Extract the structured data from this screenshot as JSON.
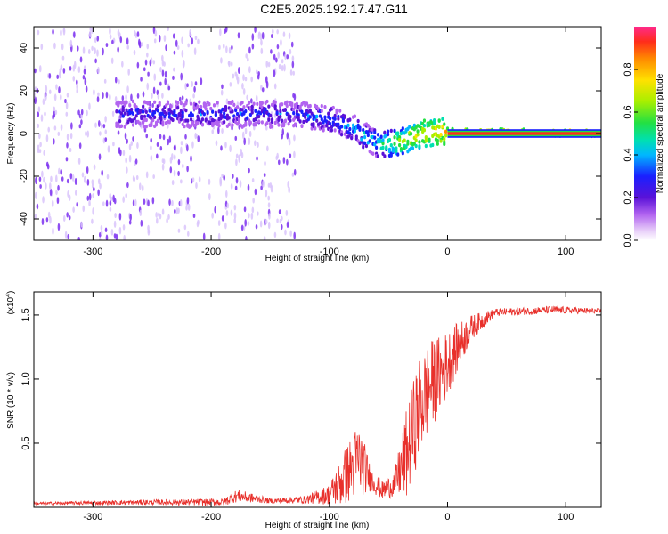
{
  "title": "C2E5.2025.192.17.47.G11",
  "colors": {
    "snr_line": "#e8302b",
    "axis": "#000000",
    "spectro_noise": "#7b2ff0",
    "spectro_noise_light": "#d9c4fb"
  },
  "chart_data": [
    {
      "type": "heatmap",
      "name": "spectrogram",
      "xlabel": "Height of straight line (km)",
      "ylabel": "Frequency (Hz)",
      "xlim": [
        -350,
        130
      ],
      "ylim": [
        -50,
        50
      ],
      "x_ticks": [
        -300,
        -200,
        -100,
        0,
        100
      ],
      "y_ticks": [
        -40,
        -20,
        0,
        20,
        40
      ],
      "colorbar": {
        "label": "Normalized spectral amplitude",
        "range": [
          0,
          1
        ],
        "ticks": [
          0.0,
          0.2,
          0.4,
          0.6,
          0.8
        ],
        "tick_labels": [
          "0.0",
          "0.2",
          "0.4",
          "0.6",
          "0.8"
        ]
      },
      "ridge": {
        "description_points": [
          {
            "x": -130,
            "y": 9
          },
          {
            "x": -100,
            "y": 7
          },
          {
            "x": -80,
            "y": 3
          },
          {
            "x": -60,
            "y": -5
          },
          {
            "x": -40,
            "y": -4
          },
          {
            "x": -20,
            "y": 0
          },
          {
            "x": 0,
            "y": 1
          },
          {
            "x": 130,
            "y": 0
          }
        ],
        "amplitude": [
          {
            "x": -130,
            "v": 0.35
          },
          {
            "x": -100,
            "v": 0.4
          },
          {
            "x": -60,
            "v": 0.5
          },
          {
            "x": -30,
            "v": 0.75
          },
          {
            "x": 0,
            "v": 0.85
          },
          {
            "x": 130,
            "v": 0.95
          }
        ]
      },
      "noise_cutoff_x": -130
    },
    {
      "type": "line",
      "name": "snr",
      "xlabel": "Height of straight line (km)",
      "ylabel": "SNR (10 * v/v)",
      "y_scale_label": "(x10",
      "y_scale_exp": "4",
      "y_scale_close": ")",
      "xlim": [
        -350,
        130
      ],
      "ylim": [
        0,
        1.68
      ],
      "x_ticks": [
        -300,
        -200,
        -100,
        0,
        100
      ],
      "y_ticks": [
        0.5,
        1.0,
        1.5
      ],
      "y_tick_labels": [
        "0.5",
        "1.0",
        "1.5"
      ],
      "envelope": [
        {
          "x": -350,
          "base": 0.03,
          "amp": 0.01
        },
        {
          "x": -250,
          "base": 0.04,
          "amp": 0.02
        },
        {
          "x": -190,
          "base": 0.04,
          "amp": 0.03
        },
        {
          "x": -178,
          "base": 0.09,
          "amp": 0.05
        },
        {
          "x": -150,
          "base": 0.05,
          "amp": 0.02
        },
        {
          "x": -120,
          "base": 0.06,
          "amp": 0.03
        },
        {
          "x": -100,
          "base": 0.1,
          "amp": 0.08
        },
        {
          "x": -90,
          "base": 0.2,
          "amp": 0.2
        },
        {
          "x": -75,
          "base": 0.38,
          "amp": 0.3
        },
        {
          "x": -65,
          "base": 0.22,
          "amp": 0.1
        },
        {
          "x": -55,
          "base": 0.13,
          "amp": 0.07
        },
        {
          "x": -45,
          "base": 0.18,
          "amp": 0.1
        },
        {
          "x": -35,
          "base": 0.4,
          "amp": 0.35
        },
        {
          "x": -25,
          "base": 0.75,
          "amp": 0.4
        },
        {
          "x": -15,
          "base": 0.95,
          "amp": 0.35
        },
        {
          "x": -5,
          "base": 1.05,
          "amp": 0.3
        },
        {
          "x": 5,
          "base": 1.2,
          "amp": 0.22
        },
        {
          "x": 20,
          "base": 1.4,
          "amp": 0.1
        },
        {
          "x": 40,
          "base": 1.52,
          "amp": 0.03
        },
        {
          "x": 90,
          "base": 1.54,
          "amp": 0.03
        },
        {
          "x": 130,
          "base": 1.53,
          "amp": 0.02
        }
      ]
    }
  ]
}
